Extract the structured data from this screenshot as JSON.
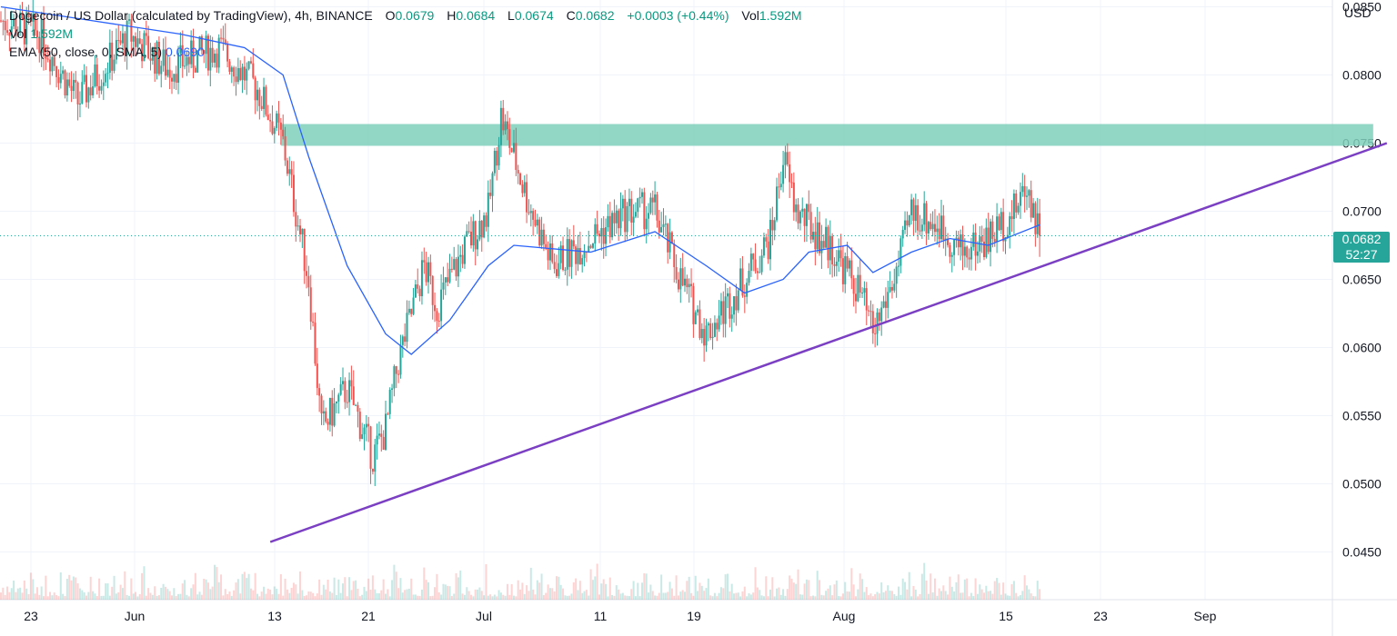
{
  "header": {
    "title": "Dogecoin / US Dollar (calculated by TradingView), 4h, BINANCE",
    "o_label": "O",
    "o_value": "0.0679",
    "h_label": "H",
    "h_value": "0.0684",
    "l_label": "L",
    "l_value": "0.0674",
    "c_label": "C",
    "c_value": "0.0682",
    "change": "+0.0003 (+0.44%)",
    "vol_label": "Vol",
    "vol_value": "1.592M"
  },
  "vol_legend": {
    "label": "Vol",
    "value": "1.592M"
  },
  "ema_legend": {
    "label": "EMA (50, close, 0, SMA, 5)",
    "value": "0.0690"
  },
  "currency": "USD",
  "last_price": {
    "value": "0.0682",
    "countdown": "52:27"
  },
  "colors": {
    "up": "#26a69a",
    "down": "#ef5350",
    "ema": "#2962ff",
    "trendline": "#7b3fc4",
    "zone": "#7fcfbb"
  },
  "chart_data": {
    "type": "candlestick",
    "timeframe": "4h",
    "exchange": "BINANCE",
    "y_ticks": [
      "0.0850",
      "0.0800",
      "0.0750",
      "0.0700",
      "0.0650",
      "0.0600",
      "0.0550",
      "0.0500",
      "0.0450"
    ],
    "ylim": [
      0.0415,
      0.0855
    ],
    "x_ticks": [
      "23",
      "Jun",
      "13",
      "21",
      "Jul",
      "11",
      "19",
      "Aug",
      "15",
      "23",
      "Sep"
    ],
    "price_path": [
      {
        "date": "May 20",
        "price": 0.084
      },
      {
        "date": "May 23",
        "price": 0.083
      },
      {
        "date": "May 26",
        "price": 0.078
      },
      {
        "date": "May 30",
        "price": 0.083
      },
      {
        "date": "Jun 2",
        "price": 0.0805
      },
      {
        "date": "Jun 6",
        "price": 0.082
      },
      {
        "date": "Jun 9",
        "price": 0.079
      },
      {
        "date": "Jun 11",
        "price": 0.075
      },
      {
        "date": "Jun 13",
        "price": 0.065
      },
      {
        "date": "Jun 14",
        "price": 0.054
      },
      {
        "date": "Jun 16",
        "price": 0.057
      },
      {
        "date": "Jun 18",
        "price": 0.052
      },
      {
        "date": "Jun 19",
        "price": 0.054
      },
      {
        "date": "Jun 20",
        "price": 0.059
      },
      {
        "date": "Jun 22",
        "price": 0.066
      },
      {
        "date": "Jun 23",
        "price": 0.063
      },
      {
        "date": "Jun 25",
        "price": 0.067
      },
      {
        "date": "Jun 27",
        "price": 0.07
      },
      {
        "date": "Jun 28",
        "price": 0.077
      },
      {
        "date": "Jun 30",
        "price": 0.071
      },
      {
        "date": "Jul 2",
        "price": 0.066
      },
      {
        "date": "Jul 5",
        "price": 0.068
      },
      {
        "date": "Jul 8",
        "price": 0.07
      },
      {
        "date": "Jul 10",
        "price": 0.07
      },
      {
        "date": "Jul 12",
        "price": 0.065
      },
      {
        "date": "Jul 14",
        "price": 0.061
      },
      {
        "date": "Jul 17",
        "price": 0.065
      },
      {
        "date": "Jul 19",
        "price": 0.068
      },
      {
        "date": "Jul 20",
        "price": 0.074
      },
      {
        "date": "Jul 21",
        "price": 0.07
      },
      {
        "date": "Jul 24",
        "price": 0.067
      },
      {
        "date": "Jul 26",
        "price": 0.064
      },
      {
        "date": "Jul 27",
        "price": 0.061
      },
      {
        "date": "Jul 29",
        "price": 0.066
      },
      {
        "date": "Jul 30",
        "price": 0.07
      },
      {
        "date": "Aug 1",
        "price": 0.069
      },
      {
        "date": "Aug 3",
        "price": 0.067
      },
      {
        "date": "Aug 5",
        "price": 0.068
      },
      {
        "date": "Aug 7",
        "price": 0.07
      },
      {
        "date": "Aug 8",
        "price": 0.072
      },
      {
        "date": "Aug 9",
        "price": 0.0682
      }
    ],
    "ema_path": [
      {
        "date": "May 20",
        "value": 0.085
      },
      {
        "date": "May 27",
        "value": 0.084
      },
      {
        "date": "Jun 3",
        "value": 0.083
      },
      {
        "date": "Jun 8",
        "value": 0.082
      },
      {
        "date": "Jun 11",
        "value": 0.08
      },
      {
        "date": "Jun 13",
        "value": 0.074
      },
      {
        "date": "Jun 16",
        "value": 0.066
      },
      {
        "date": "Jun 19",
        "value": 0.061
      },
      {
        "date": "Jun 21",
        "value": 0.0595
      },
      {
        "date": "Jun 24",
        "value": 0.062
      },
      {
        "date": "Jun 27",
        "value": 0.066
      },
      {
        "date": "Jun 29",
        "value": 0.0675
      },
      {
        "date": "Jul 5",
        "value": 0.067
      },
      {
        "date": "Jul 10",
        "value": 0.0685
      },
      {
        "date": "Jul 14",
        "value": 0.066
      },
      {
        "date": "Jul 17",
        "value": 0.064
      },
      {
        "date": "Jul 20",
        "value": 0.065
      },
      {
        "date": "Jul 22",
        "value": 0.067
      },
      {
        "date": "Jul 25",
        "value": 0.0675
      },
      {
        "date": "Jul 27",
        "value": 0.0655
      },
      {
        "date": "Jul 30",
        "value": 0.067
      },
      {
        "date": "Aug 2",
        "value": 0.068
      },
      {
        "date": "Aug 5",
        "value": 0.0675
      },
      {
        "date": "Aug 9",
        "value": 0.069
      }
    ],
    "resistance_zone": {
      "from": "Jun 11",
      "to": "Sep 5",
      "low": 0.0748,
      "high": 0.0764
    },
    "support_trendline": [
      {
        "date": "Jun 11",
        "price": 0.046
      },
      {
        "date": "Sep 5",
        "price": 0.075
      }
    ],
    "last_price": 0.0682
  }
}
